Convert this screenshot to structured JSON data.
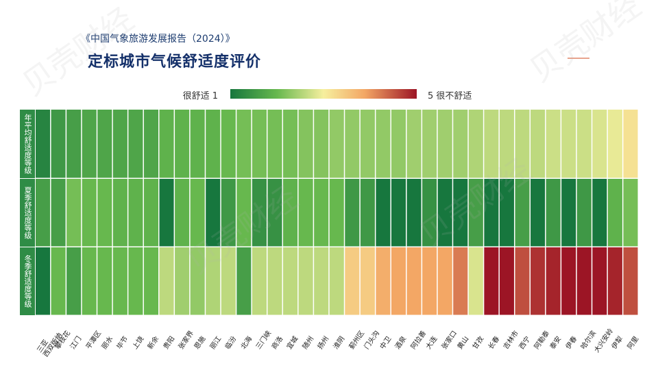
{
  "header": {
    "subtitle": "《中国气象旅游发展报告（2024）》",
    "title": "定标城市气候舒适度评价"
  },
  "legend": {
    "low_label": "很舒适 1",
    "high_label": "5 很不舒适",
    "colors": [
      "#17773e",
      "#67b84e",
      "#f6ef9e",
      "#f3a765",
      "#9c1525"
    ]
  },
  "watermark": "贝壳财经",
  "chart_data": {
    "type": "heatmap",
    "title": "定标城市气候舒适度评价",
    "rows": [
      "年平均舒适度等级",
      "夏季舒适度等级",
      "冬季舒适度等级"
    ],
    "columns": [
      "三亚\n西双版纳",
      "攀枝花",
      "江门",
      "平潭区",
      "丽水",
      "毕节",
      "上饶",
      "新余",
      "贵阳",
      "张家界",
      "恩施",
      "丽江",
      "临汾",
      "北海",
      "三门峡",
      "商洛",
      "宜城",
      "随州",
      "扬州",
      "淮阴",
      "蓟州区",
      "门头沟",
      "中卫",
      "酒泉",
      "阿拉善",
      "大连",
      "张家口",
      "黄山",
      "甘孜",
      "长春",
      "吉林市",
      "西宁",
      "阿勒泰",
      "泰安",
      "伊春",
      "哈尔滨",
      "大兴安岭",
      "伊犁",
      "阿里"
    ],
    "scale": [
      1,
      5
    ],
    "values": [
      [
        1.2,
        1.5,
        1.6,
        1.7,
        1.7,
        1.7,
        1.7,
        1.7,
        1.9,
        1.9,
        1.9,
        1.9,
        2.0,
        2.1,
        2.1,
        2.1,
        2.1,
        2.2,
        2.2,
        2.3,
        2.3,
        2.3,
        2.3,
        2.3,
        2.4,
        2.4,
        2.4,
        2.4,
        2.5,
        2.6,
        2.6,
        2.6,
        2.6,
        2.7,
        2.7,
        2.7,
        2.8,
        2.9,
        3.2
      ],
      [
        1.6,
        1.6,
        2.1,
        2.0,
        2.0,
        1.9,
        1.9,
        1.9,
        1.0,
        1.9,
        2.0,
        1.0,
        1.5,
        2.0,
        1.4,
        1.4,
        1.9,
        2.0,
        2.0,
        2.0,
        1.5,
        1.5,
        1.0,
        1.0,
        1.0,
        1.4,
        1.0,
        1.0,
        1.6,
        1.0,
        1.0,
        1.6,
        1.0,
        1.5,
        1.0,
        1.5,
        1.0,
        1.9,
        2.1
      ],
      [
        1.0,
        2.0,
        1.6,
        2.0,
        2.0,
        2.0,
        2.0,
        2.0,
        2.6,
        2.4,
        2.3,
        2.5,
        2.6,
        1.6,
        2.6,
        2.6,
        2.6,
        2.6,
        2.6,
        2.6,
        3.5,
        3.5,
        3.9,
        4.0,
        4.0,
        4.0,
        4.0,
        4.3,
        2.8,
        5.0,
        5.0,
        4.6,
        4.8,
        4.9,
        5.0,
        5.0,
        5.0,
        4.9,
        4.6
      ]
    ]
  }
}
